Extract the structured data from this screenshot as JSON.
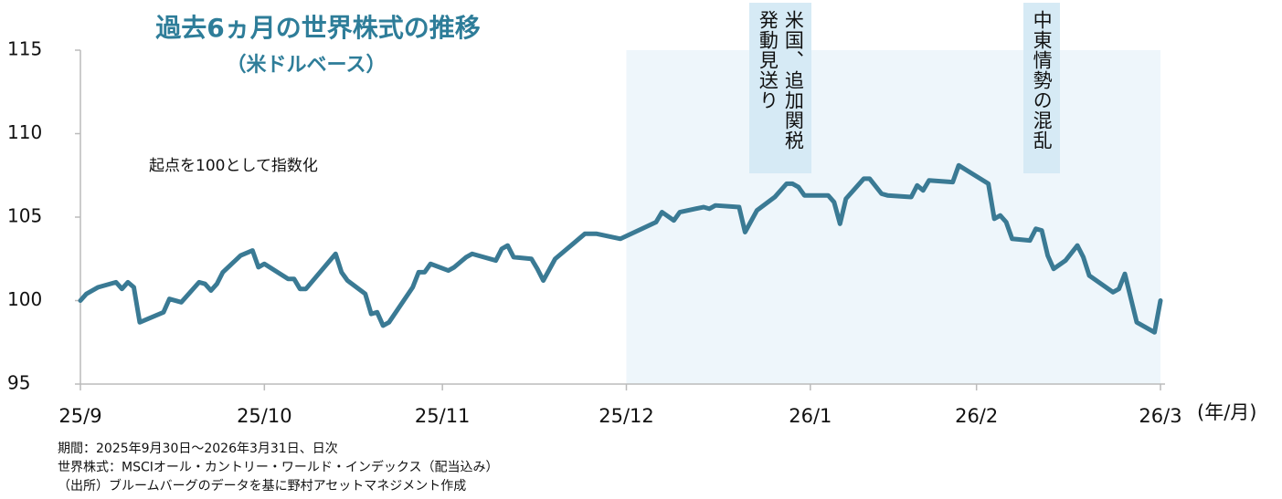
{
  "chart_data": {
    "type": "line",
    "title": "過去6ヵ月の世界株式の推移",
    "subtitle": "（米ドルベース）",
    "annotation_note": "起点を100として指数化",
    "x_unit": "(年/月)",
    "color": "#3a7a94",
    "shade_color": "#eef6fb",
    "shaded_span": [
      92,
      182
    ],
    "x": [
      0,
      1,
      3,
      6,
      7,
      8,
      9,
      10,
      14,
      15,
      17,
      20,
      21,
      22,
      23,
      24,
      27,
      29,
      30,
      31,
      35,
      36,
      37,
      38,
      43,
      44,
      45,
      48,
      49,
      50,
      51,
      52,
      56,
      57,
      58,
      59,
      62,
      63,
      65,
      66,
      70,
      71,
      72,
      73,
      76,
      77,
      78,
      80,
      83,
      85,
      86,
      87,
      91,
      97,
      98,
      100,
      101,
      105,
      106,
      107,
      111,
      112,
      114,
      117,
      119,
      120,
      121,
      122,
      126,
      127,
      128,
      129,
      132,
      133,
      135,
      136,
      140,
      141,
      142,
      143,
      147,
      148,
      153,
      154,
      155,
      156,
      157,
      160,
      161,
      162,
      163,
      164,
      166,
      168,
      169,
      170,
      174,
      175,
      176,
      178,
      181,
      182
    ],
    "values": [
      100.0,
      100.4,
      100.8,
      101.1,
      100.7,
      101.1,
      100.8,
      98.7,
      99.3,
      100.1,
      99.9,
      101.1,
      101.0,
      100.6,
      101.0,
      101.7,
      102.7,
      103.0,
      102.0,
      102.2,
      101.3,
      101.3,
      100.7,
      100.7,
      102.8,
      101.7,
      101.2,
      100.4,
      99.2,
      99.3,
      98.5,
      98.7,
      100.8,
      101.7,
      101.7,
      102.2,
      101.8,
      102.0,
      102.6,
      102.8,
      102.4,
      103.1,
      103.3,
      102.6,
      102.5,
      101.9,
      101.2,
      102.5,
      103.4,
      104.0,
      104.0,
      104.0,
      103.7,
      104.7,
      105.3,
      104.8,
      105.3,
      105.6,
      105.5,
      105.7,
      105.6,
      104.1,
      105.4,
      106.2,
      107.0,
      107.0,
      106.8,
      106.3,
      106.3,
      105.9,
      104.6,
      106.1,
      107.3,
      107.3,
      106.4,
      106.3,
      106.2,
      106.9,
      106.6,
      107.2,
      107.1,
      108.1,
      107.0,
      104.9,
      105.1,
      104.7,
      103.7,
      103.6,
      104.3,
      104.2,
      102.7,
      101.9,
      102.4,
      103.3,
      102.6,
      101.5,
      100.5,
      100.7,
      101.6,
      98.7,
      98.1,
      100.0
    ],
    "xlim": [
      0,
      182
    ],
    "xticks": [
      {
        "value": 0,
        "label": "25/9"
      },
      {
        "value": 31,
        "label": "25/10"
      },
      {
        "value": 61,
        "label": "25/11"
      },
      {
        "value": 92,
        "label": "25/12"
      },
      {
        "value": 123,
        "label": "26/1"
      },
      {
        "value": 151,
        "label": "26/2"
      },
      {
        "value": 182,
        "label": "26/3"
      }
    ],
    "ylim": [
      95,
      115
    ],
    "yticks": [
      95,
      100,
      105,
      110,
      115
    ],
    "annotations": [
      {
        "lines": [
          "米国、追加関税",
          "発動見送り"
        ],
        "x": 118
      },
      {
        "lines": [
          "中東情勢の混乱"
        ],
        "x": 162
      }
    ],
    "notes": [
      "期間：2025年9月30日～2026年3月31日、日次",
      "世界株式：MSCIオール・カントリー・ワールド・インデックス（配当込み）",
      "（出所）ブルームバーグのデータを基に野村アセットマネジメント作成"
    ]
  }
}
